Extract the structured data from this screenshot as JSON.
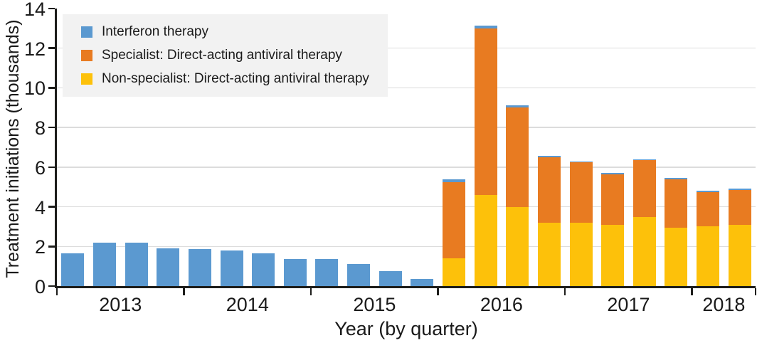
{
  "chart_data": {
    "type": "bar",
    "stacked": true,
    "title": "",
    "xlabel": "Year (by quarter)",
    "ylabel": "Treatment initiations (thousands)",
    "ylim": [
      0,
      14
    ],
    "yticks": [
      0,
      2,
      4,
      6,
      8,
      10,
      12,
      14
    ],
    "grid": "horizontal",
    "legend_position": "top-left",
    "x_year_labels": [
      "2013",
      "2014",
      "2015",
      "2016",
      "2017",
      "2018"
    ],
    "quarters_per_year": [
      4,
      4,
      4,
      4,
      4,
      2
    ],
    "categories": [
      "2013 Q1",
      "2013 Q2",
      "2013 Q3",
      "2013 Q4",
      "2014 Q1",
      "2014 Q2",
      "2014 Q3",
      "2014 Q4",
      "2015 Q1",
      "2015 Q2",
      "2015 Q3",
      "2015 Q4",
      "2016 Q1",
      "2016 Q2",
      "2016 Q3",
      "2016 Q4",
      "2017 Q1",
      "2017 Q2",
      "2017 Q3",
      "2017 Q4",
      "2018 Q1",
      "2018 Q2"
    ],
    "series": [
      {
        "name": "Interferon therapy",
        "color": "#5B99D0",
        "values": [
          1.65,
          2.2,
          2.2,
          1.9,
          1.85,
          1.8,
          1.65,
          1.35,
          1.35,
          1.1,
          0.75,
          0.35,
          0.15,
          0.15,
          0.12,
          0.06,
          0.05,
          0.05,
          0.04,
          0.05,
          0.05,
          0.06
        ]
      },
      {
        "name": "Specialist: Direct-acting antiviral therapy",
        "color": "#E87B21",
        "values": [
          0,
          0,
          0,
          0,
          0,
          0,
          0,
          0,
          0,
          0,
          0,
          0,
          3.85,
          8.4,
          5.0,
          3.3,
          3.05,
          2.55,
          2.85,
          2.45,
          1.75,
          1.75
        ]
      },
      {
        "name": "Non-specialist: Direct-acting antiviral therapy",
        "color": "#FDC10A",
        "values": [
          0,
          0,
          0,
          0,
          0,
          0,
          0,
          0,
          0,
          0,
          0,
          0,
          1.4,
          4.6,
          4.0,
          3.2,
          3.2,
          3.1,
          3.5,
          2.95,
          3.0,
          3.1
        ]
      }
    ],
    "stack_order_bottom_to_top": [
      2,
      1,
      0
    ],
    "colors": {
      "axis": "#1d1d1b",
      "gridline": "#dcdcdc",
      "legend_background": "#f2f2f2",
      "text": "#1a1a1a"
    }
  }
}
